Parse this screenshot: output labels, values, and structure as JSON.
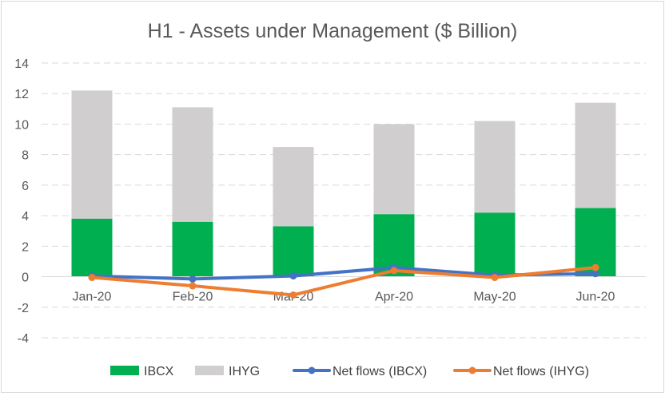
{
  "chart_data": {
    "type": "bar",
    "title": "H1 - Assets under Management ($ Billion)",
    "categories": [
      "Jan-20",
      "Feb-20",
      "Mar-20",
      "Apr-20",
      "May-20",
      "Jun-20"
    ],
    "stacked_series": [
      {
        "name": "IBCX",
        "values": [
          3.8,
          3.6,
          3.3,
          4.1,
          4.2,
          4.5
        ],
        "color": "#00b050"
      },
      {
        "name": "IHYG",
        "values": [
          8.4,
          7.5,
          5.2,
          5.9,
          6.0,
          6.9
        ],
        "color": "#d0cece"
      }
    ],
    "line_series": [
      {
        "name": "Net flows (IBCX)",
        "values": [
          0.05,
          -0.15,
          0.05,
          0.6,
          0.1,
          0.2
        ],
        "color": "#4472c4"
      },
      {
        "name": "Net flows (IHYG)",
        "values": [
          -0.05,
          -0.6,
          -1.2,
          0.4,
          -0.05,
          0.6
        ],
        "color": "#ed7d31"
      }
    ],
    "yaxis": {
      "min": -4,
      "max": 14,
      "step": 2,
      "ticks": [
        "-4",
        "-2",
        "0",
        "2",
        "4",
        "6",
        "8",
        "10",
        "12",
        "14"
      ]
    },
    "grid": true,
    "legend_position": "bottom"
  }
}
